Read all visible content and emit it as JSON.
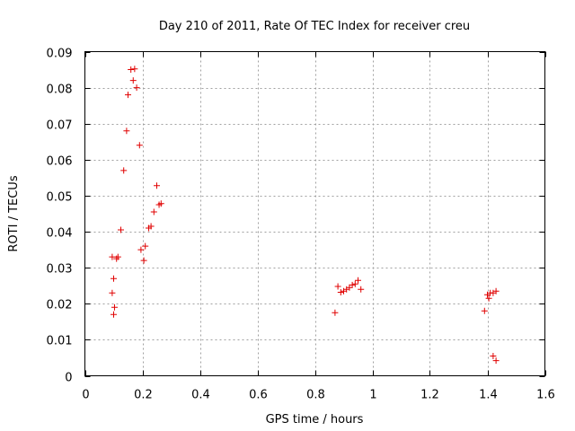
{
  "chart_data": {
    "type": "scatter",
    "title": "Day 210 of 2011, Rate Of TEC Index for receiver creu",
    "xlabel": "GPS time / hours",
    "ylabel": "ROTI / TECUs",
    "xlim": [
      0,
      1.6
    ],
    "ylim": [
      0,
      0.09
    ],
    "x_ticks": [
      0,
      0.2,
      0.4,
      0.6,
      0.8,
      1,
      1.2,
      1.4,
      1.6
    ],
    "x_tick_labels": [
      "0",
      "0.2",
      "0.4",
      "0.6",
      "0.8",
      "1",
      "1.2",
      "1.4",
      "1.6"
    ],
    "y_ticks": [
      0,
      0.01,
      0.02,
      0.03,
      0.04,
      0.05,
      0.06,
      0.07,
      0.08,
      0.09
    ],
    "y_tick_labels": [
      "0",
      "0.01",
      "0.02",
      "0.03",
      "0.04",
      "0.05",
      "0.06",
      "0.07",
      "0.08",
      "0.09"
    ],
    "grid": true,
    "marker": "plus",
    "series": [
      {
        "color": "#e00000",
        "points": [
          [
            0.095,
            0.033
          ],
          [
            0.1,
            0.027
          ],
          [
            0.095,
            0.023
          ],
          [
            0.1,
            0.017
          ],
          [
            0.103,
            0.019
          ],
          [
            0.11,
            0.0325
          ],
          [
            0.115,
            0.033
          ],
          [
            0.125,
            0.0405
          ],
          [
            0.135,
            0.057
          ],
          [
            0.145,
            0.068
          ],
          [
            0.15,
            0.078
          ],
          [
            0.16,
            0.085
          ],
          [
            0.168,
            0.082
          ],
          [
            0.173,
            0.0852
          ],
          [
            0.18,
            0.08
          ],
          [
            0.19,
            0.064
          ],
          [
            0.195,
            0.035
          ],
          [
            0.205,
            0.032
          ],
          [
            0.21,
            0.036
          ],
          [
            0.222,
            0.041
          ],
          [
            0.23,
            0.0415
          ],
          [
            0.24,
            0.0455
          ],
          [
            0.25,
            0.0528
          ],
          [
            0.258,
            0.0475
          ],
          [
            0.265,
            0.0478
          ],
          [
            0.87,
            0.0175
          ],
          [
            0.88,
            0.0248
          ],
          [
            0.89,
            0.0232
          ],
          [
            0.9,
            0.0235
          ],
          [
            0.91,
            0.024
          ],
          [
            0.92,
            0.0245
          ],
          [
            0.93,
            0.0252
          ],
          [
            0.94,
            0.0255
          ],
          [
            0.95,
            0.0265
          ],
          [
            0.96,
            0.024
          ],
          [
            1.39,
            0.018
          ],
          [
            1.4,
            0.0225
          ],
          [
            1.405,
            0.0215
          ],
          [
            1.41,
            0.023
          ],
          [
            1.42,
            0.023
          ],
          [
            1.43,
            0.0235
          ],
          [
            1.42,
            0.0055
          ],
          [
            1.43,
            0.0042
          ]
        ]
      }
    ]
  }
}
